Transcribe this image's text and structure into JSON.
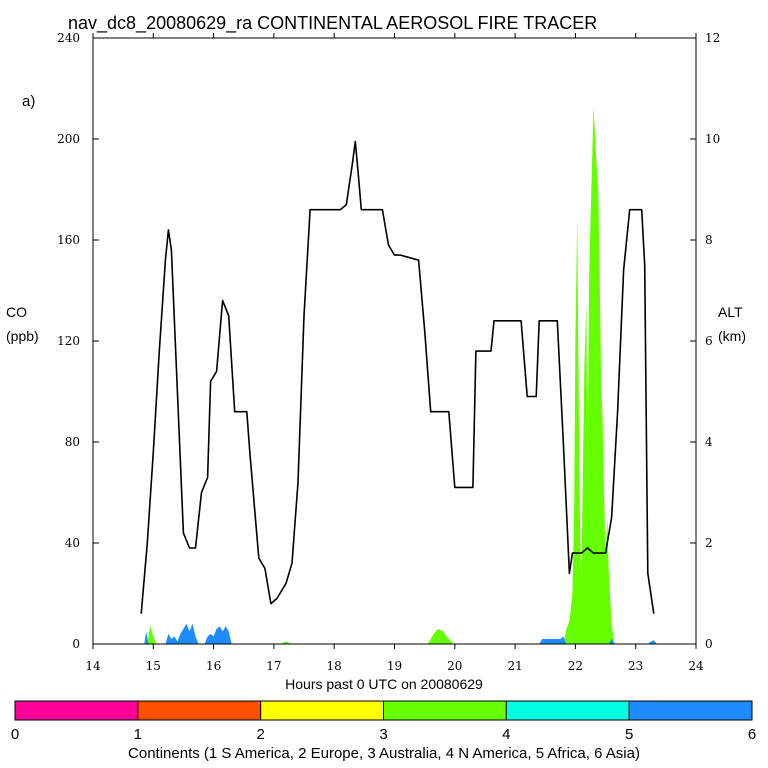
{
  "chart_data": {
    "type": "area",
    "title": "nav_dc8_20080629_ra CONTINENTAL AEROSOL FIRE TRACER",
    "panel_label": "a)",
    "xlabel": "Hours past 0 UTC on 20080629",
    "ylabel_left": "CO",
    "ylabel_left_unit": "(ppb)",
    "ylabel_right": "ALT",
    "ylabel_right_unit": "(km)",
    "xlim": [
      14,
      24
    ],
    "ylim_left": [
      0,
      240
    ],
    "ylim_right": [
      0,
      12
    ],
    "xticks": [
      "14",
      "15",
      "16",
      "17",
      "18",
      "19",
      "20",
      "21",
      "22",
      "23",
      "24"
    ],
    "yticks_left": [
      "0",
      "40",
      "80",
      "120",
      "160",
      "200",
      "240"
    ],
    "yticks_right": [
      "0",
      "2",
      "4",
      "6",
      "8",
      "10",
      "12"
    ],
    "altitude_km": {
      "name": "ALT",
      "color": "#000000",
      "points": [
        [
          14.8,
          0.6
        ],
        [
          14.9,
          2.0
        ],
        [
          15.0,
          3.8
        ],
        [
          15.1,
          5.8
        ],
        [
          15.2,
          7.6
        ],
        [
          15.25,
          8.2
        ],
        [
          15.3,
          7.8
        ],
        [
          15.4,
          5.0
        ],
        [
          15.5,
          2.2
        ],
        [
          15.6,
          1.9
        ],
        [
          15.7,
          1.9
        ],
        [
          15.8,
          3.0
        ],
        [
          15.9,
          3.3
        ],
        [
          15.95,
          5.2
        ],
        [
          16.05,
          5.4
        ],
        [
          16.15,
          6.8
        ],
        [
          16.25,
          6.5
        ],
        [
          16.35,
          4.6
        ],
        [
          16.55,
          4.6
        ],
        [
          16.6,
          3.8
        ],
        [
          16.75,
          1.7
        ],
        [
          16.85,
          1.5
        ],
        [
          16.95,
          0.8
        ],
        [
          17.05,
          0.9
        ],
        [
          17.2,
          1.2
        ],
        [
          17.3,
          1.6
        ],
        [
          17.4,
          3.2
        ],
        [
          17.5,
          6.5
        ],
        [
          17.6,
          8.6
        ],
        [
          17.7,
          8.6
        ],
        [
          18.1,
          8.6
        ],
        [
          18.2,
          8.7
        ],
        [
          18.3,
          9.5
        ],
        [
          18.35,
          9.95
        ],
        [
          18.4,
          9.3
        ],
        [
          18.45,
          8.6
        ],
        [
          18.8,
          8.6
        ],
        [
          18.9,
          7.9
        ],
        [
          19.0,
          7.7
        ],
        [
          19.1,
          7.7
        ],
        [
          19.4,
          7.6
        ],
        [
          19.5,
          6.2
        ],
        [
          19.6,
          4.6
        ],
        [
          19.9,
          4.6
        ],
        [
          20.0,
          3.1
        ],
        [
          20.3,
          3.1
        ],
        [
          20.35,
          5.8
        ],
        [
          20.6,
          5.8
        ],
        [
          20.65,
          6.4
        ],
        [
          21.1,
          6.4
        ],
        [
          21.2,
          4.9
        ],
        [
          21.35,
          4.9
        ],
        [
          21.4,
          6.4
        ],
        [
          21.7,
          6.4
        ],
        [
          21.8,
          4.0
        ],
        [
          21.9,
          1.4
        ],
        [
          21.95,
          1.8
        ],
        [
          22.1,
          1.8
        ],
        [
          22.2,
          1.9
        ],
        [
          22.3,
          1.8
        ],
        [
          22.5,
          1.8
        ],
        [
          22.6,
          2.5
        ],
        [
          22.7,
          4.6
        ],
        [
          22.8,
          7.4
        ],
        [
          22.9,
          8.6
        ],
        [
          23.1,
          8.6
        ],
        [
          23.15,
          7.5
        ],
        [
          23.2,
          1.4
        ],
        [
          23.3,
          0.6
        ]
      ]
    },
    "fire_tracer_ppb": [
      {
        "continent": "4 N America",
        "color": "#66ff00",
        "points": [
          [
            14.9,
            0
          ],
          [
            14.93,
            5
          ],
          [
            14.95,
            7
          ],
          [
            15.0,
            3
          ],
          [
            15.05,
            0
          ],
          [
            15.3,
            0
          ],
          [
            15.35,
            2
          ],
          [
            15.4,
            1
          ],
          [
            15.45,
            0
          ],
          [
            17.1,
            0
          ],
          [
            17.2,
            1
          ],
          [
            17.3,
            0
          ],
          [
            19.55,
            0
          ],
          [
            19.65,
            4
          ],
          [
            19.72,
            6
          ],
          [
            19.8,
            5
          ],
          [
            19.9,
            2
          ],
          [
            19.98,
            0
          ],
          [
            21.8,
            0
          ],
          [
            21.85,
            6
          ],
          [
            21.9,
            9
          ],
          [
            21.95,
            20
          ],
          [
            21.98,
            55
          ],
          [
            22.0,
            120
          ],
          [
            22.03,
            170
          ],
          [
            22.05,
            110
          ],
          [
            22.08,
            40
          ],
          [
            22.1,
            25
          ],
          [
            22.12,
            60
          ],
          [
            22.15,
            110
          ],
          [
            22.18,
            135
          ],
          [
            22.2,
            70
          ],
          [
            22.23,
            150
          ],
          [
            22.27,
            185
          ],
          [
            22.3,
            213
          ],
          [
            22.33,
            200
          ],
          [
            22.35,
            190
          ],
          [
            22.38,
            180
          ],
          [
            22.4,
            150
          ],
          [
            22.43,
            100
          ],
          [
            22.45,
            90
          ],
          [
            22.48,
            55
          ],
          [
            22.5,
            35
          ],
          [
            22.53,
            50
          ],
          [
            22.55,
            30
          ],
          [
            22.6,
            8
          ],
          [
            22.65,
            0
          ]
        ]
      },
      {
        "continent": "6 Asia",
        "color": "#1e8cff",
        "points": [
          [
            14.85,
            0
          ],
          [
            14.88,
            5
          ],
          [
            14.92,
            0
          ],
          [
            15.2,
            0
          ],
          [
            15.25,
            4
          ],
          [
            15.3,
            2
          ],
          [
            15.35,
            3
          ],
          [
            15.4,
            1
          ],
          [
            15.45,
            4
          ],
          [
            15.5,
            6
          ],
          [
            15.55,
            8
          ],
          [
            15.6,
            5
          ],
          [
            15.65,
            8
          ],
          [
            15.7,
            3
          ],
          [
            15.75,
            0
          ],
          [
            15.85,
            0
          ],
          [
            15.9,
            3
          ],
          [
            15.95,
            4
          ],
          [
            16.0,
            3
          ],
          [
            16.05,
            6
          ],
          [
            16.1,
            7
          ],
          [
            16.15,
            5
          ],
          [
            16.2,
            7
          ],
          [
            16.25,
            5
          ],
          [
            16.3,
            0
          ],
          [
            21.4,
            0
          ],
          [
            21.45,
            2
          ],
          [
            21.6,
            2
          ],
          [
            21.75,
            2
          ],
          [
            21.8,
            3
          ],
          [
            21.85,
            0
          ],
          [
            22.55,
            0
          ],
          [
            22.6,
            2
          ],
          [
            22.65,
            0
          ],
          [
            23.2,
            0
          ],
          [
            23.25,
            1
          ],
          [
            23.3,
            1.5
          ],
          [
            23.35,
            0
          ]
        ]
      }
    ],
    "colorbar": {
      "ticks": [
        "0",
        "1",
        "2",
        "3",
        "4",
        "5",
        "6"
      ],
      "colors": [
        "#ff0099",
        "#ff5000",
        "#ffff00",
        "#66ff00",
        "#00ffe0",
        "#1e8cff"
      ],
      "label": "Continents (1 S America, 2 Europe, 3 Australia, 4 N America, 5 Africa, 6 Asia)"
    }
  }
}
